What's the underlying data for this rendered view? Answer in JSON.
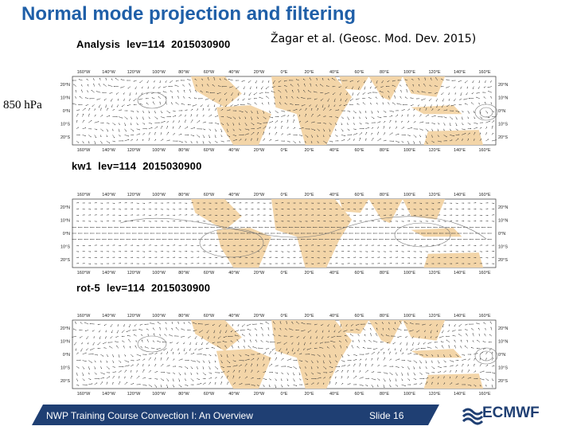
{
  "slide": {
    "title": "Normal mode projection and filtering",
    "citation": "Žagar et al. (Geosc. Mod. Dev. 2015)",
    "level_label": "850 hPa"
  },
  "panels": [
    {
      "name": "Analysis",
      "lev": "lev=114",
      "date": "2015030900"
    },
    {
      "name": "kw1",
      "lev": "lev=114",
      "date": "2015030900"
    },
    {
      "name": "rot-5",
      "lev": "lev=114",
      "date": "2015030900"
    }
  ],
  "map_axes": {
    "lon_labels": [
      "160°W",
      "140°W",
      "120°W",
      "100°W",
      "80°W",
      "60°W",
      "40°W",
      "20°W",
      "0°E",
      "20°E",
      "40°E",
      "60°E",
      "80°E",
      "100°E",
      "120°E",
      "140°E",
      "160°E"
    ],
    "lat_labels_left": [
      "20°N",
      "10°N",
      "0°N",
      "10°S",
      "20°S"
    ],
    "lat_labels_right": [
      "20°N",
      "10°N",
      "0°N",
      "10°S",
      "20°S"
    ]
  },
  "colors": {
    "title": "#1f5fa8",
    "land": "#f3d5a8",
    "footer": "#1f3f73"
  },
  "footer": {
    "course": "NWP Training Course Convection I: An Overview",
    "slide_number": "Slide 16",
    "logo": "ECMWF"
  }
}
